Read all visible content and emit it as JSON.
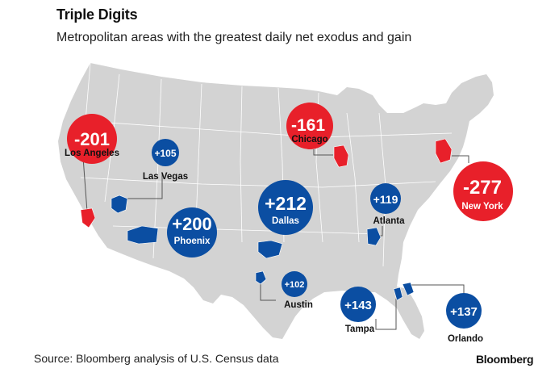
{
  "header": {
    "title": "Triple Digits",
    "subtitle": "Metropolitan areas with the greatest daily net exodus and gain"
  },
  "footer": {
    "source": "Source: Bloomberg analysis of U.S. Census data",
    "brand": "Bloomberg"
  },
  "colors": {
    "loss": "#e8202a",
    "gain": "#0b4ea2",
    "land": "#d3d3d3",
    "border": "#ffffff"
  },
  "metros": [
    {
      "id": "los-angeles",
      "city": "Los Angeles",
      "value": "-201",
      "type": "loss"
    },
    {
      "id": "chicago",
      "city": "Chicago",
      "value": "-161",
      "type": "loss"
    },
    {
      "id": "new-york",
      "city": "New York",
      "value": "-277",
      "type": "loss"
    },
    {
      "id": "las-vegas",
      "city": "Las Vegas",
      "value": "+105",
      "type": "gain"
    },
    {
      "id": "phoenix",
      "city": "Phoenix",
      "value": "+200",
      "type": "gain"
    },
    {
      "id": "dallas",
      "city": "Dallas",
      "value": "+212",
      "type": "gain"
    },
    {
      "id": "atlanta",
      "city": "Atlanta",
      "value": "+119",
      "type": "gain"
    },
    {
      "id": "austin",
      "city": "Austin",
      "value": "+102",
      "type": "gain"
    },
    {
      "id": "tampa",
      "city": "Tampa",
      "value": "+143",
      "type": "gain"
    },
    {
      "id": "orlando",
      "city": "Orlando",
      "value": "+137",
      "type": "gain"
    }
  ]
}
